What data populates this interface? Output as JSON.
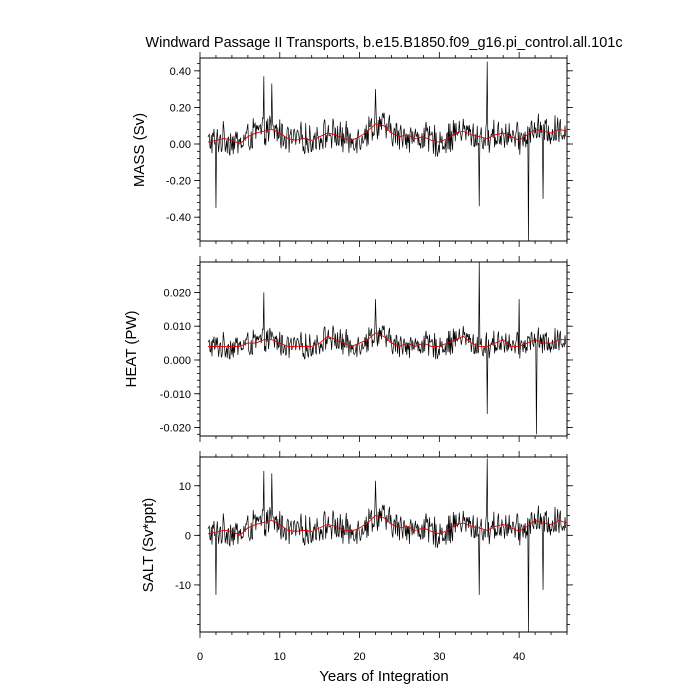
{
  "colors": {
    "series": "#000000",
    "running_mean": "#e00000",
    "frame": "#000000",
    "background": "#ffffff"
  },
  "chart_data": {
    "type": "line",
    "title": "Windward Passage II Transports, b.e15.B1850.f09_g16.pi_control.all.101c",
    "xlabel": "Years of Integration",
    "xlim": [
      0,
      46
    ],
    "xticks": [
      0,
      10,
      20,
      30,
      40
    ],
    "xtick_labels": [
      "0",
      "10",
      "20",
      "30",
      "40"
    ],
    "grid": false,
    "panels": [
      {
        "id": "mass",
        "ylabel": "MASS (Sv)",
        "ylim": [
          -0.53,
          0.47
        ],
        "yticks": [
          -0.4,
          -0.2,
          0.0,
          0.2,
          0.4
        ],
        "ytick_labels": [
          "-0.40",
          "-0.20",
          "0.00",
          "0.20",
          "0.40"
        ],
        "series_mean": 0.04,
        "series_amplitude": 0.1,
        "spikes": [
          [
            2.0,
            -0.35
          ],
          [
            8.0,
            0.37
          ],
          [
            9.0,
            0.33
          ],
          [
            22.0,
            0.3
          ],
          [
            35.0,
            -0.34
          ],
          [
            36.0,
            0.45
          ],
          [
            41.2,
            -0.53
          ],
          [
            43.0,
            -0.3
          ]
        ],
        "running_mean": {
          "x": [
            1,
            3,
            4,
            5,
            6,
            7,
            8,
            9,
            10,
            11,
            12,
            13,
            14,
            15,
            16,
            17,
            18,
            19,
            20,
            21,
            22,
            23,
            24,
            25,
            26,
            27,
            28,
            29,
            30,
            31,
            32,
            33,
            34,
            35,
            36,
            37,
            38,
            39,
            40,
            41,
            42,
            43,
            44,
            45,
            46
          ],
          "y": [
            0.01,
            0.03,
            0.02,
            0.0,
            0.04,
            0.06,
            0.07,
            0.08,
            0.06,
            0.03,
            0.02,
            0.03,
            0.02,
            0.04,
            0.06,
            0.05,
            0.03,
            0.02,
            0.04,
            0.07,
            0.11,
            0.1,
            0.06,
            0.04,
            0.05,
            0.03,
            0.04,
            0.02,
            0.01,
            0.03,
            0.06,
            0.07,
            0.05,
            0.04,
            0.03,
            0.05,
            0.06,
            0.04,
            0.02,
            0.05,
            0.08,
            0.07,
            0.06,
            0.08,
            0.07
          ]
        }
      },
      {
        "id": "heat",
        "ylabel": "HEAT (PW)",
        "ylim": [
          -0.0225,
          0.029
        ],
        "yticks": [
          -0.02,
          -0.01,
          0.0,
          0.01,
          0.02
        ],
        "ytick_labels": [
          "-0.020",
          "-0.010",
          "0.000",
          "0.010",
          "0.020"
        ],
        "series_mean": 0.0048,
        "series_amplitude": 0.0045,
        "spikes": [
          [
            8.0,
            0.02
          ],
          [
            22.0,
            0.018
          ],
          [
            35.0,
            0.029
          ],
          [
            36.0,
            -0.016
          ],
          [
            40.0,
            0.018
          ],
          [
            42.2,
            -0.022
          ]
        ],
        "running_mean": {
          "x": [
            1,
            3,
            4,
            5,
            6,
            7,
            8,
            9,
            10,
            11,
            12,
            13,
            14,
            15,
            16,
            17,
            18,
            19,
            20,
            21,
            22,
            23,
            24,
            25,
            26,
            27,
            28,
            29,
            30,
            31,
            32,
            33,
            34,
            35,
            36,
            37,
            38,
            39,
            40,
            41,
            42,
            43,
            44,
            45,
            46
          ],
          "y": [
            0.004,
            0.004,
            0.004,
            0.004,
            0.005,
            0.005,
            0.006,
            0.006,
            0.005,
            0.004,
            0.004,
            0.004,
            0.004,
            0.005,
            0.007,
            0.006,
            0.005,
            0.004,
            0.005,
            0.006,
            0.008,
            0.007,
            0.005,
            0.004,
            0.005,
            0.004,
            0.005,
            0.004,
            0.004,
            0.005,
            0.006,
            0.007,
            0.005,
            0.004,
            0.004,
            0.005,
            0.006,
            0.004,
            0.004,
            0.005,
            0.006,
            0.005,
            0.005,
            0.006,
            0.006
          ]
        }
      },
      {
        "id": "salt",
        "ylabel": "SALT (Sv*ppt)",
        "ylim": [
          -19.5,
          15.8
        ],
        "yticks": [
          -10,
          0,
          10
        ],
        "ytick_labels": [
          "-10",
          "0",
          "10"
        ],
        "series_mean": 1.2,
        "series_amplitude": 3.6,
        "spikes": [
          [
            2.0,
            -12.0
          ],
          [
            8.0,
            13.0
          ],
          [
            9.0,
            12.5
          ],
          [
            22.0,
            11.0
          ],
          [
            35.0,
            -12.0
          ],
          [
            36.0,
            15.5
          ],
          [
            41.2,
            -19.5
          ],
          [
            43.0,
            -11.0
          ]
        ],
        "running_mean": {
          "x": [
            1,
            3,
            4,
            5,
            6,
            7,
            8,
            9,
            10,
            11,
            12,
            13,
            14,
            15,
            16,
            17,
            18,
            19,
            20,
            21,
            22,
            23,
            24,
            25,
            26,
            27,
            28,
            29,
            30,
            31,
            32,
            33,
            34,
            35,
            36,
            37,
            38,
            39,
            40,
            41,
            42,
            43,
            44,
            45,
            46
          ],
          "y": [
            0.3,
            1.0,
            0.8,
            0.0,
            1.5,
            2.2,
            2.6,
            3.0,
            2.2,
            1.0,
            0.8,
            1.0,
            0.8,
            1.5,
            2.2,
            1.8,
            1.0,
            0.8,
            1.5,
            2.5,
            4.0,
            3.6,
            2.2,
            1.5,
            1.8,
            1.0,
            1.5,
            0.8,
            0.3,
            1.0,
            2.2,
            2.5,
            1.8,
            1.5,
            1.0,
            1.8,
            2.2,
            1.5,
            0.8,
            1.8,
            3.0,
            2.5,
            2.2,
            3.0,
            2.5
          ]
        }
      }
    ]
  }
}
